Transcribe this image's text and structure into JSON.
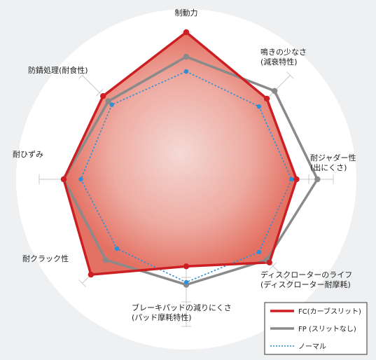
{
  "chart_data": {
    "type": "radar",
    "axes": [
      {
        "lines": [
          "制動力"
        ]
      },
      {
        "lines": [
          "鳴きの少なさ",
          "(減衰特性)"
        ]
      },
      {
        "lines": [
          "耐ジャダー性",
          "(出にくさ)"
        ]
      },
      {
        "lines": [
          "ディスクローターのライフ",
          "(ディスクローター耐摩耗)"
        ]
      },
      {
        "lines": [
          "ブレーキパッドの減りにくさ",
          "(パッド摩耗特性)"
        ]
      },
      {
        "lines": [
          "耐クラック性"
        ]
      },
      {
        "lines": [
          "耐ひずみ"
        ]
      },
      {
        "lines": [
          "防錆処理(耐食性)"
        ]
      }
    ],
    "max": 6,
    "ticks": 6,
    "series": [
      {
        "name": "FC(カーブスリット)",
        "color": "#cc1f24",
        "dash": false,
        "width": 3.5,
        "values": [
          6,
          4.65,
          4.5,
          4.8,
          3.55,
          5.5,
          5.0,
          4.8
        ],
        "fill": true
      },
      {
        "name": "FP (スリットなし)",
        "color": "#8a8a8a",
        "dash": false,
        "width": 3.5,
        "values": [
          5,
          5.1,
          5.35,
          4.65,
          4.3,
          4.65,
          5.0,
          4.5
        ],
        "fill": false
      },
      {
        "name": "ノーマル",
        "color": "#2d8fd5",
        "dash": true,
        "width": 1.6,
        "values": [
          4.4,
          4.2,
          4.3,
          4.2,
          4.2,
          4.0,
          4.3,
          4.3
        ],
        "fill": false
      }
    ]
  }
}
